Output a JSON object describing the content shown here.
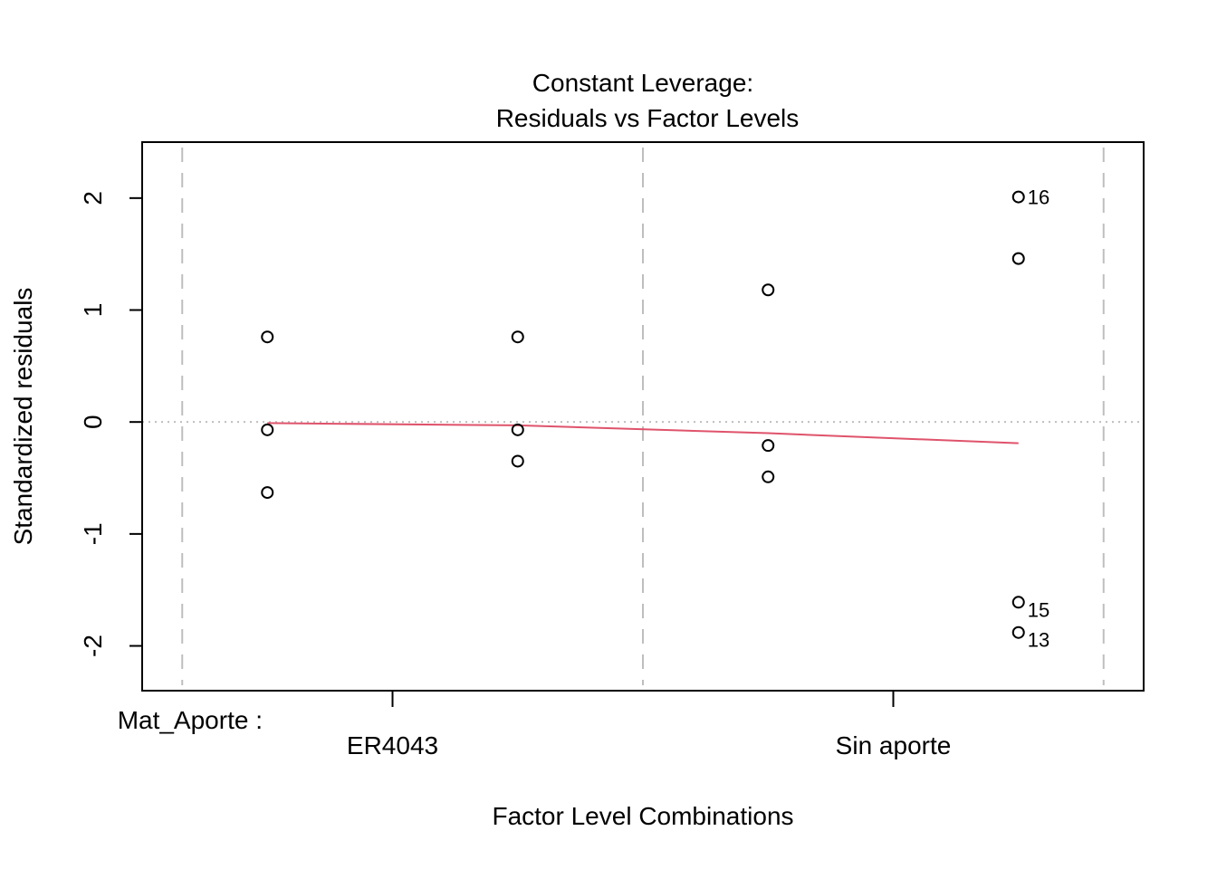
{
  "chart_data": {
    "type": "scatter",
    "title_line1": "Constant Leverage:",
    "title_line2": "Residuals vs Factor Levels",
    "xlabel": "Factor Level Combinations",
    "ylabel": "Standardized residuals",
    "factor_label": "Mat_Aporte :",
    "factor_levels": [
      "ER4043",
      "Sin aporte"
    ],
    "yticks": [
      -2,
      -1,
      0,
      1,
      2
    ],
    "ylim": [
      -2.4,
      2.5
    ],
    "xlim": [
      0.5,
      4.5
    ],
    "points": [
      {
        "x": 1,
        "y": 0.76
      },
      {
        "x": 1,
        "y": -0.07
      },
      {
        "x": 1,
        "y": -0.63
      },
      {
        "x": 2,
        "y": 0.76
      },
      {
        "x": 2,
        "y": -0.07
      },
      {
        "x": 2,
        "y": -0.35
      },
      {
        "x": 3,
        "y": 1.18
      },
      {
        "x": 3,
        "y": -0.21
      },
      {
        "x": 3,
        "y": -0.49
      },
      {
        "x": 4,
        "y": 2.01,
        "label": "16"
      },
      {
        "x": 4,
        "y": 1.46
      },
      {
        "x": 4,
        "y": -1.61,
        "label": "15"
      },
      {
        "x": 4,
        "y": -1.88,
        "label": "13"
      }
    ],
    "smooth_line": [
      {
        "x": 1,
        "y": -0.01
      },
      {
        "x": 2,
        "y": -0.03
      },
      {
        "x": 3,
        "y": -0.1
      },
      {
        "x": 4,
        "y": -0.19
      }
    ],
    "group_dividers": [
      0.66,
      2.5,
      4.34
    ],
    "factor_ticks": [
      1.5,
      3.5
    ],
    "colors": {
      "smooth": "#DF536B",
      "divider": "#BEBEBE",
      "zero_line": "#BEBEBE",
      "points": "#000000"
    }
  }
}
